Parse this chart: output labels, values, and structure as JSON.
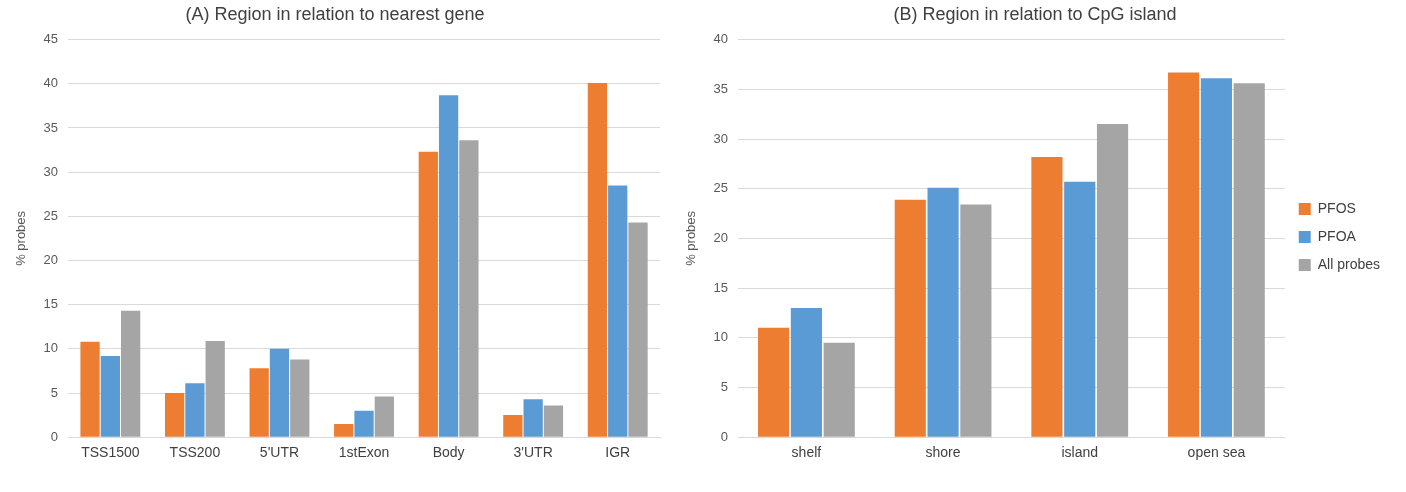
{
  "chart_data": [
    {
      "type": "bar",
      "title": "(A) Region in relation to nearest gene",
      "ylabel": "% probes",
      "categories": [
        "TSS1500",
        "TSS200",
        "5'UTR",
        "1stExon",
        "Body",
        "3'UTR",
        "IGR"
      ],
      "series": [
        {
          "color": "#ed7d31",
          "values": [
            10.8,
            5.0,
            7.8,
            1.5,
            32.3,
            2.5,
            40.1
          ]
        },
        {
          "color": "#5b9bd5",
          "values": [
            9.2,
            6.1,
            10.0,
            3.0,
            38.7,
            4.3,
            28.5
          ]
        },
        {
          "color": "#a5a5a5",
          "values": [
            14.3,
            10.9,
            8.8,
            4.6,
            33.6,
            3.6,
            24.3
          ]
        }
      ],
      "ylim": [
        0,
        45
      ],
      "yticks": [
        0,
        5,
        10,
        15,
        20,
        25,
        30,
        35,
        40,
        45
      ],
      "grid": "y",
      "legend": false
    },
    {
      "type": "bar",
      "title": "(B) Region in relation to CpG island",
      "ylabel": "% probes",
      "categories": [
        "shelf",
        "shore",
        "island",
        "open sea"
      ],
      "series": [
        {
          "name": "PFOS",
          "color": "#ed7d31",
          "values": [
            11.0,
            23.9,
            28.2,
            36.7
          ]
        },
        {
          "name": "PFOA",
          "color": "#5b9bd5",
          "values": [
            13.0,
            25.1,
            25.7,
            36.1
          ]
        },
        {
          "name": "All probes",
          "color": "#a5a5a5",
          "values": [
            9.5,
            23.4,
            31.5,
            35.6
          ]
        }
      ],
      "ylim": [
        0,
        40
      ],
      "yticks": [
        0,
        5,
        10,
        15,
        20,
        25,
        30,
        35,
        40
      ],
      "grid": "y",
      "legend": "right"
    }
  ]
}
